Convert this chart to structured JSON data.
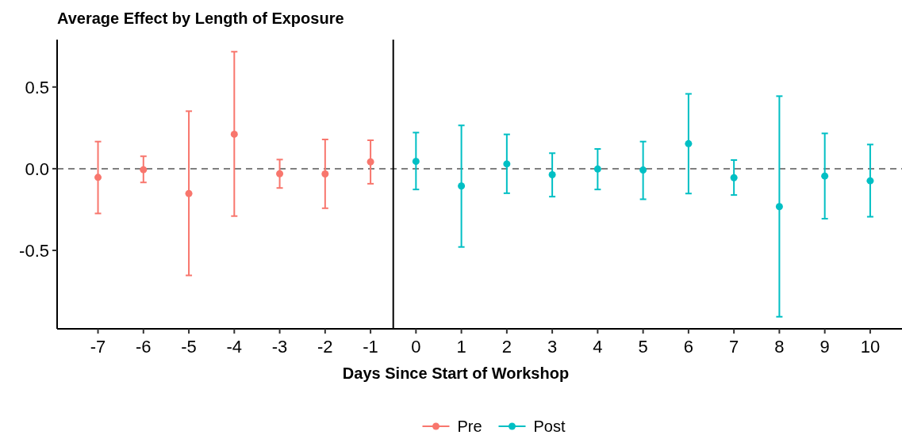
{
  "chart_data": {
    "type": "scatter",
    "title": "Average Effect by Length of Exposure",
    "xlabel": "Days Since Start of Workshop",
    "series": [
      {
        "name": "Pre",
        "color": "#f8766d",
        "x": [
          -7,
          -6,
          -5,
          -4,
          -3,
          -2,
          -1
        ],
        "values": [
          -0.053,
          -0.006,
          -0.152,
          0.211,
          -0.031,
          -0.032,
          0.042
        ],
        "errors": [
          [
            -0.274,
            0.166
          ],
          [
            -0.084,
            0.076
          ],
          [
            -0.653,
            0.352
          ],
          [
            -0.29,
            0.716
          ],
          [
            -0.118,
            0.056
          ],
          [
            -0.242,
            0.179
          ],
          [
            -0.092,
            0.174
          ]
        ]
      },
      {
        "name": "Post",
        "color": "#00bfc4",
        "x": [
          0,
          1,
          2,
          3,
          4,
          5,
          6,
          7,
          8,
          9,
          10
        ],
        "values": [
          0.045,
          -0.106,
          0.029,
          -0.037,
          -0.002,
          -0.008,
          0.153,
          -0.055,
          -0.232,
          -0.045,
          -0.074
        ],
        "errors": [
          [
            -0.127,
            0.221
          ],
          [
            -0.479,
            0.265
          ],
          [
            -0.15,
            0.21
          ],
          [
            -0.171,
            0.095
          ],
          [
            -0.127,
            0.121
          ],
          [
            -0.187,
            0.166
          ],
          [
            -0.152,
            0.458
          ],
          [
            -0.161,
            0.053
          ],
          [
            -0.906,
            0.444
          ],
          [
            -0.306,
            0.216
          ],
          [
            -0.294,
            0.148
          ]
        ]
      }
    ],
    "xlim": [
      -7.9,
      10.7
    ],
    "xticks": [
      -7,
      -6,
      -5,
      -4,
      -3,
      -2,
      -1,
      0,
      1,
      2,
      3,
      4,
      5,
      6,
      7,
      8,
      9,
      10
    ],
    "ylim": [
      -0.98,
      0.79
    ],
    "yticks": [
      {
        "value": -0.5,
        "label": "-0.5"
      },
      {
        "value": 0,
        "label": "0.0"
      },
      {
        "value": 0.5,
        "label": "0.5"
      }
    ],
    "ref_lines": [
      {
        "axis": "y",
        "value": 0,
        "color": "#7f7f7f",
        "line_style": "dashed"
      },
      {
        "axis": "x",
        "value": -0.5,
        "color": "#000000",
        "line_style": "solid"
      }
    ],
    "grid": false,
    "legend": "bottom",
    "marker": "circle"
  }
}
